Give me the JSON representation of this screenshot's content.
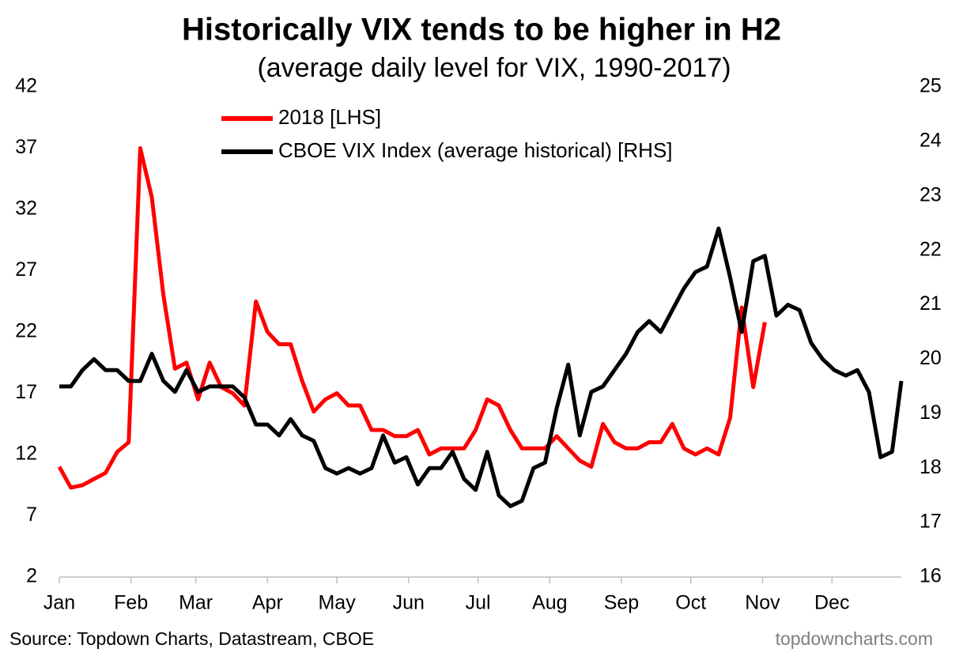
{
  "chart_data": {
    "type": "line",
    "title": "Historically VIX tends to be higher in H2",
    "subtitle": "(average daily level for VIX, 1990-2017)",
    "source": "Source: Topdown Charts, Datastream, CBOE",
    "watermark": "topdowncharts.com",
    "x": [
      1,
      6,
      11,
      16,
      21,
      26,
      31,
      36,
      41,
      46,
      51,
      56,
      61,
      66,
      71,
      76,
      81,
      86,
      91,
      96,
      101,
      106,
      111,
      116,
      121,
      126,
      131,
      136,
      141,
      146,
      151,
      156,
      161,
      166,
      171,
      176,
      181,
      186,
      191,
      196,
      201,
      206,
      211,
      216,
      221,
      226,
      231,
      236,
      241,
      246,
      251,
      256,
      261,
      266,
      271,
      276,
      281,
      286,
      291,
      296,
      301,
      306,
      311,
      316,
      321,
      326,
      331,
      336,
      341,
      346,
      351,
      356,
      361,
      365
    ],
    "xlim": [
      1,
      365
    ],
    "xticks": [
      {
        "value": 1,
        "label": "Jan"
      },
      {
        "value": 32,
        "label": "Feb"
      },
      {
        "value": 60,
        "label": "Mar"
      },
      {
        "value": 91,
        "label": "Apr"
      },
      {
        "value": 121,
        "label": "May"
      },
      {
        "value": 152,
        "label": "Jun"
      },
      {
        "value": 182,
        "label": "Jul"
      },
      {
        "value": 213,
        "label": "Aug"
      },
      {
        "value": 244,
        "label": "Sep"
      },
      {
        "value": 274,
        "label": "Oct"
      },
      {
        "value": 305,
        "label": "Nov"
      },
      {
        "value": 335,
        "label": "Dec"
      }
    ],
    "ylim": [
      2,
      42
    ],
    "yticks": [
      2,
      7,
      12,
      17,
      22,
      27,
      32,
      37,
      42
    ],
    "y2lim": [
      16,
      25
    ],
    "y2ticks": [
      16,
      17,
      18,
      19,
      20,
      21,
      22,
      23,
      24,
      25
    ],
    "legend": "top-left",
    "series": [
      {
        "name": "2018 [LHS]",
        "color": "#ff0000",
        "axis": "y",
        "values": [
          11,
          9.3,
          9.5,
          10,
          10.5,
          12.2,
          13,
          37,
          33,
          25,
          19,
          19.5,
          16.5,
          19.5,
          17.5,
          17,
          16,
          24.5,
          22,
          21,
          21,
          18,
          15.5,
          16.5,
          17,
          16,
          16,
          14,
          14,
          13.5,
          13.5,
          14,
          12,
          12.5,
          12.5,
          12.5,
          14,
          16.5,
          16,
          14,
          12.5,
          12.5,
          12.5,
          13.5,
          12.5,
          11.5,
          11,
          14.5,
          13,
          12.5,
          12.5,
          13,
          13,
          14.5,
          12.5,
          12,
          12.5,
          12,
          15,
          24,
          17.5,
          22.8,
          null,
          null,
          null,
          null,
          null,
          null,
          null,
          null,
          null,
          null,
          null,
          null
        ]
      },
      {
        "name": "CBOE VIX Index (average historical) [RHS]",
        "color": "#000000",
        "axis": "y2",
        "values": [
          19.5,
          19.5,
          19.8,
          20,
          19.8,
          19.8,
          19.6,
          19.6,
          20.1,
          19.6,
          19.4,
          19.8,
          19.4,
          19.5,
          19.5,
          19.5,
          19.3,
          18.8,
          18.8,
          18.6,
          18.9,
          18.6,
          18.5,
          18.0,
          17.9,
          18.0,
          17.9,
          18.0,
          18.6,
          18.1,
          18.2,
          17.7,
          18.0,
          18.0,
          18.3,
          17.8,
          17.6,
          18.3,
          17.5,
          17.3,
          17.4,
          18.0,
          18.1,
          19.1,
          19.9,
          18.6,
          19.4,
          19.5,
          19.8,
          20.1,
          20.5,
          20.7,
          20.5,
          20.9,
          21.3,
          21.6,
          21.7,
          22.4,
          21.5,
          20.5,
          21.8,
          21.9,
          20.8,
          21.0,
          20.9,
          20.3,
          20.0,
          19.8,
          19.7,
          19.8,
          19.4,
          18.2,
          18.3,
          19.6
        ]
      }
    ]
  }
}
